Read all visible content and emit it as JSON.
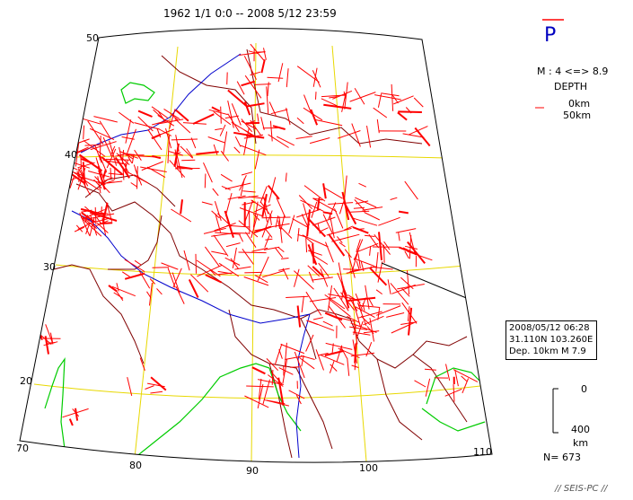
{
  "header": {
    "period": "1962 1/1  0:0 -- 2008 5/12 23:59"
  },
  "panel": {
    "mechanism": "P",
    "magnitude": "M : 4 <=> 8.9",
    "depth_title": "DEPTH",
    "depth_0": "0km",
    "depth_50": "50km",
    "scale_top": "0",
    "scale_bottom": "400",
    "scale_unit": "km",
    "count": "N= 673",
    "footer": "// SEIS-PC //"
  },
  "annotation": {
    "line1": "2008/05/12 06:28",
    "line2": "31.110N  103.260E",
    "line3": "Dep. 10km    M 7.9"
  },
  "map": {
    "lat_labels": [
      "50",
      "40",
      "30",
      "20"
    ],
    "lon_labels": [
      "70",
      "80",
      "90",
      "100",
      "110"
    ],
    "colors": {
      "grid": "#e8d800",
      "border": "#800000",
      "coast": "#00cc00",
      "river": "#0000cc",
      "axes": "#ff0000"
    }
  }
}
